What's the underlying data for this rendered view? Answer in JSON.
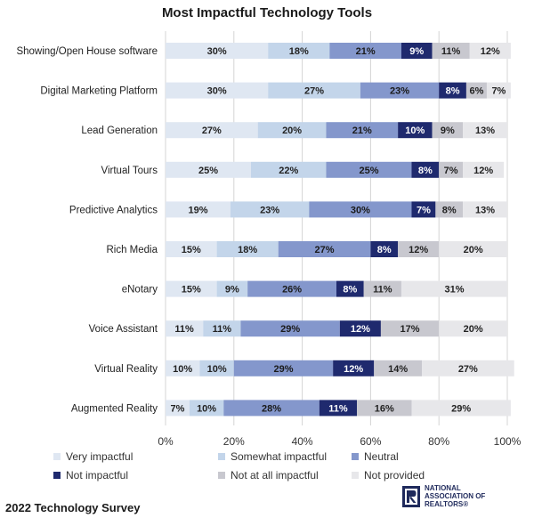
{
  "chart_data": {
    "type": "bar",
    "orientation": "horizontal",
    "stacked": true,
    "title": "Most Impactful Technology Tools",
    "categories": [
      "Showing/Open House software",
      "Digital Marketing Platform",
      "Lead Generation",
      "Virtual Tours",
      "Predictive Analytics",
      "Rich Media",
      "eNotary",
      "Voice Assistant",
      "Virtual Reality",
      "Augmented Reality"
    ],
    "series": [
      {
        "name": "Very impactful",
        "color": "#dfe7f2",
        "text_color": "#222222",
        "values": [
          30,
          30,
          27,
          25,
          19,
          15,
          15,
          11,
          10,
          7
        ]
      },
      {
        "name": "Somewhat impactful",
        "color": "#c3d5ea",
        "text_color": "#222222",
        "values": [
          18,
          27,
          20,
          22,
          23,
          18,
          9,
          11,
          10,
          10
        ]
      },
      {
        "name": "Neutral",
        "color": "#8497cc",
        "text_color": "#1a1a1a",
        "values": [
          21,
          23,
          21,
          25,
          30,
          27,
          26,
          29,
          29,
          28
        ]
      },
      {
        "name": "Not impactful",
        "color": "#1f2a6e",
        "text_color": "#ffffff",
        "values": [
          9,
          8,
          10,
          8,
          7,
          8,
          8,
          12,
          12,
          11
        ]
      },
      {
        "name": "Not at all impactful",
        "color": "#c8c8cf",
        "text_color": "#222222",
        "values": [
          11,
          6,
          9,
          7,
          8,
          12,
          11,
          17,
          14,
          16
        ]
      },
      {
        "name": "Not provided",
        "color": "#e7e7ea",
        "text_color": "#222222",
        "values": [
          12,
          7,
          13,
          12,
          13,
          20,
          31,
          20,
          27,
          29
        ]
      }
    ],
    "x_ticks": [
      "0%",
      "20%",
      "40%",
      "60%",
      "80%",
      "100%"
    ],
    "xlim": [
      0,
      100
    ],
    "grid": true,
    "legend_position": "bottom"
  },
  "footer": {
    "survey_label": "2022 Technology Survey",
    "logo_lines": [
      "NATIONAL",
      "ASSOCIATION OF",
      "REALTORS®"
    ]
  }
}
